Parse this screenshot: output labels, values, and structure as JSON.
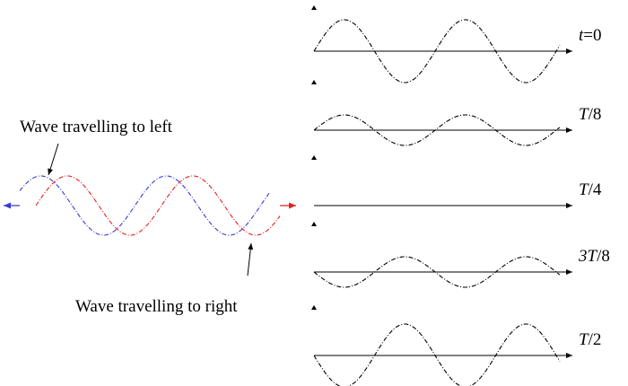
{
  "left": {
    "label_left_wave": "Wave travelling to left",
    "label_right_wave": "Wave travelling to right",
    "colors": {
      "left_wave": "#3b3bd6",
      "right_wave": "#e02020"
    }
  },
  "right": {
    "frames": [
      {
        "time_label": "t=0",
        "label_italic_part": "t",
        "label_rest": "=0",
        "phase": "neg-sine-start-up"
      },
      {
        "time_label": "T/8",
        "label_italic_part": "T",
        "label_rest": "/8",
        "phase": "reduced"
      },
      {
        "time_label": "T/4",
        "label_italic_part": "T",
        "label_rest": "/4",
        "phase": "flat"
      },
      {
        "time_label": "3T/8",
        "label_italic_part": "3T",
        "label_rest": "/8",
        "phase": "reduced-inverted"
      },
      {
        "time_label": "T/2",
        "label_italic_part": "T",
        "label_rest": "/2",
        "phase": "inverted"
      }
    ]
  }
}
